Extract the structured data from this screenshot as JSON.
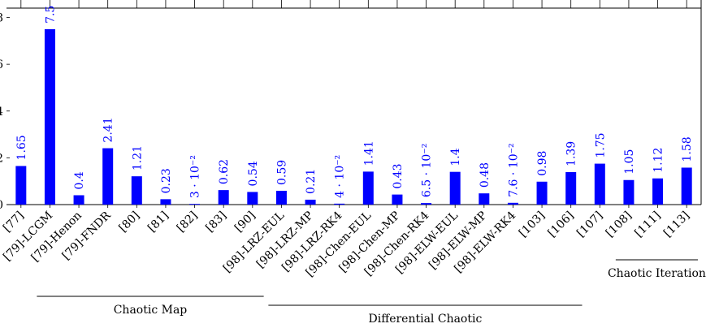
{
  "chart_data": {
    "type": "bar",
    "title": "",
    "xlabel": "",
    "ylabel": "",
    "ylim": [
      0,
      8.4
    ],
    "y_ticks": [
      0,
      2,
      4,
      6,
      8
    ],
    "y_tick_labels": [
      "0",
      "2",
      "4",
      "6",
      "8"
    ],
    "bar_color": "#0000ff",
    "label_color": "#0000ff",
    "categories": [
      "[77]",
      "[79]-LCGM",
      "[79]-Henon",
      "[79]-FNDR",
      "[80]",
      "[81]",
      "[82]",
      "[83]",
      "[90]",
      "[98]-LRZ-EUL",
      "[98]-LRZ-MP",
      "[98]-LRZ-RK4",
      "[98]-Chen-EUL",
      "[98]-Chen-MP",
      "[98]-Chen-RK4",
      "[98]-ELW-EUL",
      "[98]-ELW-MP",
      "[98]-ELW-RK4",
      "[103]",
      "[106]",
      "[107]",
      "[108]",
      "[111]",
      "[113]"
    ],
    "values": [
      1.65,
      7.5,
      0.4,
      2.41,
      1.21,
      0.23,
      0.03,
      0.62,
      0.54,
      0.59,
      0.21,
      0.04,
      1.41,
      0.43,
      0.065,
      1.4,
      0.48,
      0.076,
      0.98,
      1.39,
      1.75,
      1.05,
      1.12,
      1.58
    ],
    "value_labels": [
      "1.65",
      "7.5",
      "0.4",
      "2.41",
      "1.21",
      "0.23",
      "3 · 10⁻²",
      "0.62",
      "0.54",
      "0.59",
      "0.21",
      "4 · 10⁻²",
      "1.41",
      "0.43",
      "6.5 · 10⁻²",
      "1.4",
      "0.48",
      "7.6 · 10⁻²",
      "0.98",
      "1.39",
      "1.75",
      "1.05",
      "1.12",
      "1.58"
    ],
    "groups": [
      {
        "label": "Chaotic Map",
        "from": 0,
        "to": 8
      },
      {
        "label": "Differential Chaotic",
        "from": 8,
        "to": 19
      },
      {
        "label": "Chaotic Iteration",
        "from": 20,
        "to": 23
      }
    ]
  }
}
